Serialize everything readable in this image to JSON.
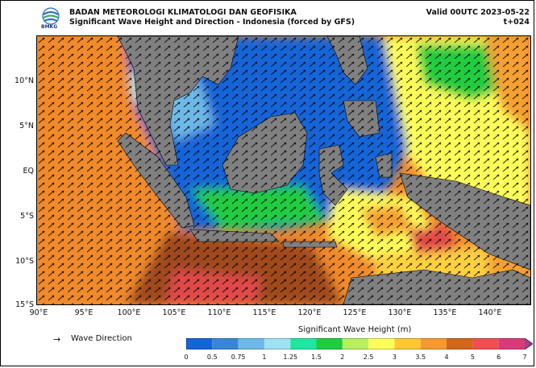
{
  "header": {
    "logo_text": "BMKG",
    "agency": "BADAN METEOROLOGI KLIMATOLOGI DAN GEOFISIKA",
    "subtitle": "Significant Wave Height and Direction - Indonesia (forced by GFS)",
    "valid": "Valid 00UTC 2023-05-22",
    "lead": "t+024"
  },
  "axes": {
    "lat_labels": [
      "10°N",
      "5°N",
      "EQ",
      "5°S",
      "10°S",
      "15°S"
    ],
    "lon_labels": [
      "90°E",
      "95°E",
      "100°E",
      "105°E",
      "110°E",
      "115°E",
      "120°E",
      "125°E",
      "130°E",
      "135°E",
      "140°E"
    ]
  },
  "legend": {
    "arrow_label": "Wave Direction",
    "colorbar_title": "Significant Wave Height (m)",
    "ticks": [
      "0",
      "0.5",
      "0.75",
      "1",
      "1.25",
      "1.5",
      "2",
      "2.5",
      "3",
      "3.5",
      "4",
      "5",
      "6",
      "7"
    ],
    "colors": [
      "#1565d8",
      "#3a86d6",
      "#6eb9e8",
      "#9fe3f2",
      "#1fe7a0",
      "#20cc40",
      "#b8ef60",
      "#ffff5a",
      "#ffc830",
      "#f49a30",
      "#d0661c",
      "#f04e50",
      "#d83a7a",
      "#a0408a"
    ]
  },
  "map_data": {
    "extent": {
      "lon": [
        90,
        145
      ],
      "lat": [
        -15,
        15
      ]
    },
    "land_color": "#808080",
    "note_colors": {
      "deep_ocean": "#f08a2c",
      "indonesian_seas": "#1565d8"
    }
  }
}
